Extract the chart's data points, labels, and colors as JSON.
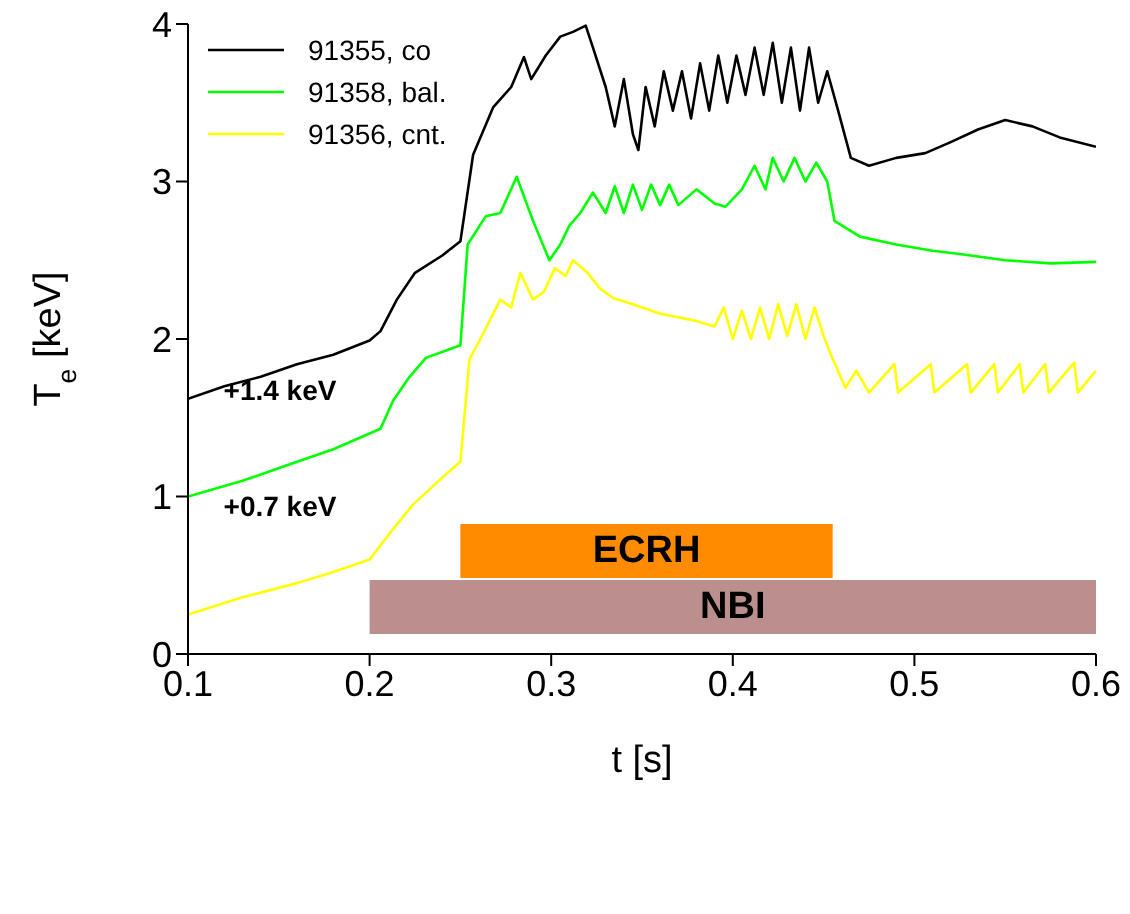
{
  "chart_data": {
    "type": "line",
    "xlabel": "t [s]",
    "ylabel": "T$_{e}$ [keV]",
    "xlim": [
      0.1,
      0.6
    ],
    "ylim": [
      0,
      4
    ],
    "xticks": [
      0.1,
      0.2,
      0.3,
      0.4,
      0.5,
      0.6
    ],
    "yticks": [
      0,
      1,
      2,
      3,
      4
    ],
    "legend": "top left",
    "marker": "none",
    "line_style": "solid",
    "series": [
      {
        "name": "91355, co",
        "color": "#000000",
        "x": [
          0.1,
          0.12,
          0.14,
          0.16,
          0.18,
          0.2,
          0.206,
          0.215,
          0.225,
          0.24,
          0.25,
          0.257,
          0.268,
          0.278,
          0.285,
          0.289,
          0.297,
          0.305,
          0.312,
          0.319,
          0.323,
          0.33,
          0.335,
          0.34,
          0.345,
          0.348,
          0.352,
          0.357,
          0.362,
          0.367,
          0.372,
          0.377,
          0.382,
          0.387,
          0.392,
          0.397,
          0.402,
          0.407,
          0.412,
          0.417,
          0.422,
          0.427,
          0.432,
          0.437,
          0.442,
          0.447,
          0.452,
          0.458,
          0.465,
          0.475,
          0.49,
          0.506,
          0.52,
          0.535,
          0.55,
          0.565,
          0.58,
          0.6
        ],
        "values": [
          1.62,
          1.7,
          1.76,
          1.84,
          1.9,
          1.99,
          2.05,
          2.25,
          2.42,
          2.53,
          2.62,
          3.17,
          3.47,
          3.6,
          3.79,
          3.65,
          3.8,
          3.92,
          3.95,
          3.99,
          3.85,
          3.6,
          3.35,
          3.65,
          3.3,
          3.2,
          3.6,
          3.35,
          3.7,
          3.45,
          3.7,
          3.4,
          3.75,
          3.45,
          3.8,
          3.5,
          3.8,
          3.55,
          3.85,
          3.55,
          3.88,
          3.5,
          3.85,
          3.45,
          3.85,
          3.5,
          3.7,
          3.45,
          3.15,
          3.1,
          3.15,
          3.18,
          3.25,
          3.33,
          3.39,
          3.35,
          3.28,
          3.22
        ]
      },
      {
        "name": "91358, bal.",
        "color": "#00ff00",
        "x": [
          0.1,
          0.13,
          0.16,
          0.18,
          0.2,
          0.206,
          0.213,
          0.222,
          0.231,
          0.25,
          0.254,
          0.264,
          0.272,
          0.281,
          0.29,
          0.299,
          0.305,
          0.31,
          0.316,
          0.323,
          0.33,
          0.335,
          0.34,
          0.345,
          0.35,
          0.355,
          0.36,
          0.365,
          0.37,
          0.38,
          0.39,
          0.396,
          0.405,
          0.412,
          0.418,
          0.422,
          0.428,
          0.434,
          0.44,
          0.446,
          0.452,
          0.456,
          0.47,
          0.49,
          0.51,
          0.525,
          0.55,
          0.575,
          0.6
        ],
        "values": [
          1.0,
          1.1,
          1.22,
          1.3,
          1.4,
          1.43,
          1.61,
          1.76,
          1.88,
          1.96,
          2.6,
          2.78,
          2.8,
          3.03,
          2.75,
          2.5,
          2.6,
          2.72,
          2.8,
          2.93,
          2.8,
          2.97,
          2.8,
          2.98,
          2.82,
          2.98,
          2.85,
          2.98,
          2.85,
          2.95,
          2.86,
          2.84,
          2.95,
          3.1,
          2.95,
          3.15,
          3.0,
          3.15,
          3.0,
          3.12,
          3.0,
          2.75,
          2.65,
          2.6,
          2.56,
          2.54,
          2.5,
          2.48,
          2.49
        ]
      },
      {
        "name": "91356, cnt.",
        "color": "#ffff00",
        "x": [
          0.1,
          0.13,
          0.16,
          0.18,
          0.2,
          0.212,
          0.224,
          0.24,
          0.25,
          0.255,
          0.261,
          0.272,
          0.278,
          0.283,
          0.29,
          0.296,
          0.302,
          0.308,
          0.312,
          0.32,
          0.327,
          0.334,
          0.345,
          0.36,
          0.378,
          0.39,
          0.395,
          0.4,
          0.405,
          0.41,
          0.415,
          0.42,
          0.425,
          0.43,
          0.435,
          0.44,
          0.445,
          0.45,
          0.454,
          0.462,
          0.468,
          0.475,
          0.489,
          0.491,
          0.509,
          0.511,
          0.529,
          0.531,
          0.544,
          0.546,
          0.558,
          0.56,
          0.572,
          0.574,
          0.588,
          0.59,
          0.6
        ],
        "values": [
          0.25,
          0.36,
          0.45,
          0.52,
          0.6,
          0.78,
          0.95,
          1.12,
          1.22,
          1.87,
          2.0,
          2.25,
          2.2,
          2.42,
          2.25,
          2.3,
          2.45,
          2.4,
          2.5,
          2.42,
          2.32,
          2.26,
          2.22,
          2.16,
          2.12,
          2.08,
          2.2,
          2.0,
          2.18,
          2.0,
          2.2,
          2.0,
          2.22,
          2.02,
          2.22,
          2.0,
          2.2,
          2.02,
          1.9,
          1.69,
          1.8,
          1.66,
          1.84,
          1.66,
          1.84,
          1.66,
          1.84,
          1.66,
          1.84,
          1.66,
          1.84,
          1.66,
          1.84,
          1.66,
          1.85,
          1.66,
          1.8
        ]
      }
    ],
    "bands": [
      {
        "axis": "x",
        "from": 0.2,
        "to": 0.6,
        "label": "NBI",
        "color": "#bc8f8f"
      },
      {
        "axis": "x",
        "from": 0.25,
        "to": 0.455,
        "label": "ECRH",
        "color": "#ff8c00"
      }
    ],
    "annotations": [
      "+1.4 keV",
      "+0.7 keV"
    ]
  }
}
